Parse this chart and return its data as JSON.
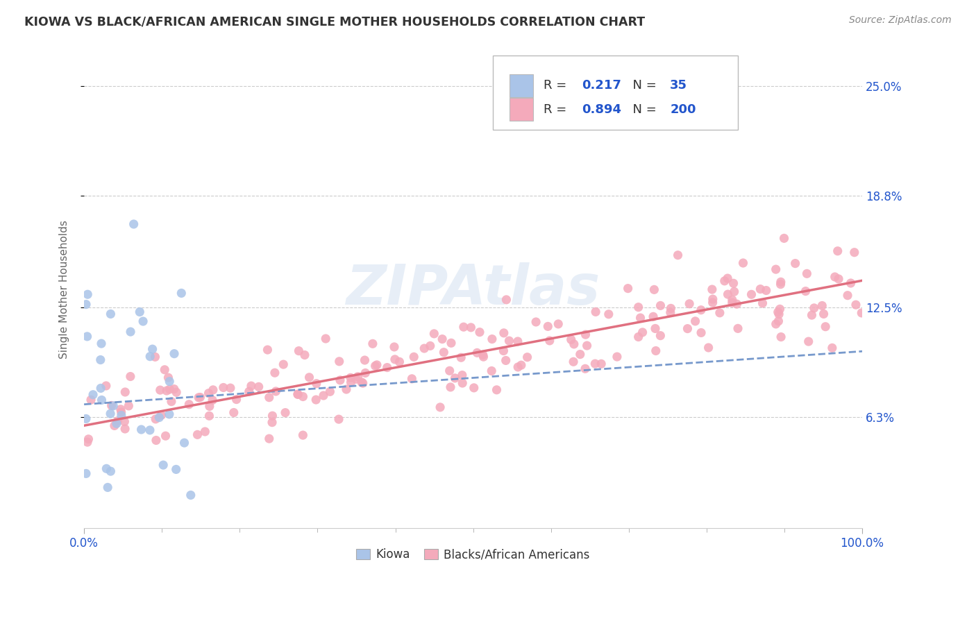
{
  "title": "KIOWA VS BLACK/AFRICAN AMERICAN SINGLE MOTHER HOUSEHOLDS CORRELATION CHART",
  "source": "Source: ZipAtlas.com",
  "ylabel": "Single Mother Households",
  "xlim": [
    0,
    100
  ],
  "ylim": [
    0,
    27
  ],
  "yticks": [
    6.3,
    12.5,
    18.8,
    25.0
  ],
  "ytick_labels": [
    "6.3%",
    "12.5%",
    "18.8%",
    "25.0%"
  ],
  "xtick_labels": [
    "0.0%",
    "100.0%"
  ],
  "kiowa_color": "#aac4e8",
  "kiowa_line_color": "#7799cc",
  "black_color": "#f4aabb",
  "black_line_color": "#e07080",
  "kiowa_R": 0.217,
  "kiowa_N": 35,
  "black_R": 0.894,
  "black_N": 200,
  "legend_text_color": "#2255cc",
  "title_color": "#333333",
  "watermark": "ZIPAtlas",
  "background_color": "#ffffff",
  "grid_color": "#cccccc",
  "ylabel_color": "#666666",
  "source_color": "#888888",
  "axis_text_color": "#2255cc"
}
